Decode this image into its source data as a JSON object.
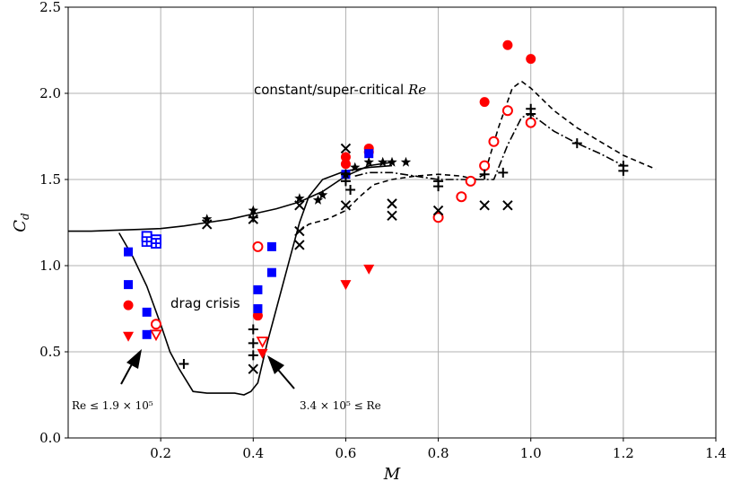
{
  "chart_data": {
    "type": "scatter",
    "title": "",
    "xlabel": "M",
    "ylabel": "C_d",
    "ylabel_main": "C",
    "ylabel_sub": "d",
    "xlim": [
      0.0,
      1.4
    ],
    "ylim": [
      0.0,
      2.5
    ],
    "grid": true,
    "legend": "none",
    "x_ticks": [
      0.2,
      0.4,
      0.6,
      0.8,
      1.0,
      1.2,
      1.4
    ],
    "x_tick_labels": [
      "0.2",
      "0.4",
      "0.6",
      "0.8",
      "1.0",
      "1.2",
      "1.4"
    ],
    "y_ticks": [
      0.0,
      0.5,
      1.0,
      1.5,
      2.0,
      2.5
    ],
    "y_tick_labels": [
      "0.0",
      "0.5",
      "1.0",
      "1.5",
      "2.0",
      "2.5"
    ],
    "annotations": {
      "constant_prefix": "constant/super-critical ",
      "constant_re": "Re",
      "drag_crisis": "drag crisis",
      "low_re_text": "Re ≤ 1.9 × 10⁵",
      "high_re_text": "3.4 × 10⁵ ≤ Re"
    },
    "colors": {
      "red": "#ff0000",
      "blue": "#0000ff",
      "black": "#000000"
    },
    "lines": [
      {
        "style": "solid",
        "points": [
          [
            0.0,
            1.2
          ],
          [
            0.05,
            1.2
          ],
          [
            0.1,
            1.205
          ],
          [
            0.15,
            1.21
          ],
          [
            0.2,
            1.215
          ],
          [
            0.25,
            1.23
          ],
          [
            0.3,
            1.25
          ],
          [
            0.35,
            1.27
          ],
          [
            0.4,
            1.3
          ],
          [
            0.45,
            1.33
          ],
          [
            0.5,
            1.37
          ],
          [
            0.55,
            1.43
          ],
          [
            0.6,
            1.52
          ],
          [
            0.65,
            1.58
          ],
          [
            0.7,
            1.6
          ]
        ]
      },
      {
        "style": "solid",
        "points": [
          [
            0.11,
            1.19
          ],
          [
            0.14,
            1.05
          ],
          [
            0.17,
            0.88
          ],
          [
            0.2,
            0.66
          ],
          [
            0.22,
            0.5
          ],
          [
            0.24,
            0.4
          ],
          [
            0.27,
            0.27
          ],
          [
            0.3,
            0.26
          ],
          [
            0.33,
            0.26
          ],
          [
            0.36,
            0.26
          ],
          [
            0.38,
            0.25
          ],
          [
            0.395,
            0.27
          ],
          [
            0.41,
            0.32
          ],
          [
            0.43,
            0.55
          ],
          [
            0.45,
            0.75
          ],
          [
            0.48,
            1.05
          ],
          [
            0.5,
            1.25
          ],
          [
            0.52,
            1.4
          ],
          [
            0.55,
            1.5
          ],
          [
            0.6,
            1.55
          ],
          [
            0.65,
            1.57
          ],
          [
            0.7,
            1.58
          ]
        ]
      },
      {
        "style": "dashed",
        "points": [
          [
            0.5,
            1.2
          ],
          [
            0.52,
            1.24
          ],
          [
            0.56,
            1.27
          ],
          [
            0.6,
            1.32
          ],
          [
            0.63,
            1.4
          ],
          [
            0.66,
            1.47
          ],
          [
            0.7,
            1.5
          ],
          [
            0.75,
            1.52
          ],
          [
            0.8,
            1.53
          ],
          [
            0.85,
            1.52
          ],
          [
            0.88,
            1.5
          ],
          [
            0.9,
            1.53
          ],
          [
            0.93,
            1.8
          ],
          [
            0.96,
            2.03
          ],
          [
            0.98,
            2.07
          ],
          [
            1.0,
            2.03
          ],
          [
            1.05,
            1.9
          ],
          [
            1.1,
            1.8
          ],
          [
            1.15,
            1.72
          ],
          [
            1.2,
            1.64
          ],
          [
            1.27,
            1.56
          ]
        ]
      },
      {
        "style": "dashdot",
        "points": [
          [
            0.62,
            1.52
          ],
          [
            0.65,
            1.54
          ],
          [
            0.7,
            1.54
          ],
          [
            0.75,
            1.52
          ],
          [
            0.8,
            1.5
          ],
          [
            0.84,
            1.5
          ],
          [
            0.88,
            1.5
          ],
          [
            0.92,
            1.5
          ],
          [
            0.95,
            1.7
          ],
          [
            0.98,
            1.86
          ],
          [
            1.0,
            1.88
          ],
          [
            1.05,
            1.78
          ],
          [
            1.1,
            1.71
          ],
          [
            1.15,
            1.65
          ],
          [
            1.2,
            1.58
          ]
        ]
      }
    ],
    "series": [
      {
        "marker": "circle-filled",
        "color": "#ff0000",
        "points": [
          [
            0.13,
            0.77
          ],
          [
            0.41,
            0.71
          ],
          [
            0.6,
            1.59
          ],
          [
            0.6,
            1.63
          ],
          [
            0.65,
            1.66
          ],
          [
            0.65,
            1.68
          ],
          [
            0.9,
            1.95
          ],
          [
            0.95,
            2.28
          ],
          [
            1.0,
            2.2
          ]
        ]
      },
      {
        "marker": "circle-open",
        "color": "#ff0000",
        "points": [
          [
            0.19,
            0.66
          ],
          [
            0.41,
            1.11
          ],
          [
            0.8,
            1.28
          ],
          [
            0.85,
            1.4
          ],
          [
            0.87,
            1.49
          ],
          [
            0.9,
            1.58
          ],
          [
            0.92,
            1.72
          ],
          [
            0.95,
            1.9
          ],
          [
            1.0,
            1.83
          ]
        ]
      },
      {
        "marker": "triangle-down-filled",
        "color": "#ff0000",
        "points": [
          [
            0.13,
            0.59
          ],
          [
            0.42,
            0.49
          ],
          [
            0.6,
            0.89
          ],
          [
            0.65,
            0.98
          ]
        ]
      },
      {
        "marker": "triangle-down-open",
        "color": "#ff0000",
        "points": [
          [
            0.19,
            0.6
          ],
          [
            0.42,
            0.56
          ]
        ]
      },
      {
        "marker": "square-filled",
        "color": "#0000ff",
        "points": [
          [
            0.13,
            1.08
          ],
          [
            0.13,
            0.89
          ],
          [
            0.17,
            0.73
          ],
          [
            0.17,
            0.6
          ],
          [
            0.41,
            0.86
          ],
          [
            0.41,
            0.75
          ],
          [
            0.44,
            1.11
          ],
          [
            0.44,
            0.96
          ],
          [
            0.6,
            1.53
          ],
          [
            0.65,
            1.65
          ]
        ]
      },
      {
        "marker": "square-open",
        "color": "#0000ff",
        "points": [
          [
            0.17,
            1.17
          ],
          [
            0.19,
            1.15
          ]
        ]
      },
      {
        "marker": "square-cross",
        "color": "#0000ff",
        "points": [
          [
            0.17,
            1.14
          ],
          [
            0.19,
            1.13
          ]
        ]
      },
      {
        "marker": "plus",
        "color": "#000000",
        "points": [
          [
            0.25,
            0.43
          ],
          [
            0.4,
            0.63
          ],
          [
            0.4,
            0.55
          ],
          [
            0.4,
            0.48
          ],
          [
            0.4,
            1.28
          ],
          [
            0.6,
            1.53
          ],
          [
            0.6,
            1.49
          ],
          [
            0.61,
            1.44
          ],
          [
            0.8,
            1.49
          ],
          [
            0.8,
            1.46
          ],
          [
            0.9,
            1.53
          ],
          [
            0.94,
            1.54
          ],
          [
            1.0,
            1.91
          ],
          [
            1.0,
            1.88
          ],
          [
            1.1,
            1.71
          ],
          [
            1.2,
            1.58
          ],
          [
            1.2,
            1.55
          ]
        ]
      },
      {
        "marker": "x",
        "color": "#000000",
        "points": [
          [
            0.3,
            1.24
          ],
          [
            0.4,
            0.4
          ],
          [
            0.4,
            1.27
          ],
          [
            0.5,
            1.2
          ],
          [
            0.5,
            1.12
          ],
          [
            0.5,
            1.35
          ],
          [
            0.6,
            1.35
          ],
          [
            0.6,
            1.68
          ],
          [
            0.7,
            1.36
          ],
          [
            0.7,
            1.29
          ],
          [
            0.8,
            1.32
          ],
          [
            0.9,
            1.35
          ],
          [
            0.95,
            1.35
          ]
        ]
      },
      {
        "marker": "star",
        "color": "#000000",
        "points": [
          [
            0.3,
            1.27
          ],
          [
            0.4,
            1.32
          ],
          [
            0.5,
            1.39
          ],
          [
            0.54,
            1.38
          ],
          [
            0.55,
            1.41
          ],
          [
            0.6,
            1.53
          ],
          [
            0.62,
            1.57
          ],
          [
            0.65,
            1.6
          ],
          [
            0.68,
            1.6
          ],
          [
            0.7,
            1.6
          ],
          [
            0.73,
            1.6
          ]
        ]
      }
    ]
  }
}
